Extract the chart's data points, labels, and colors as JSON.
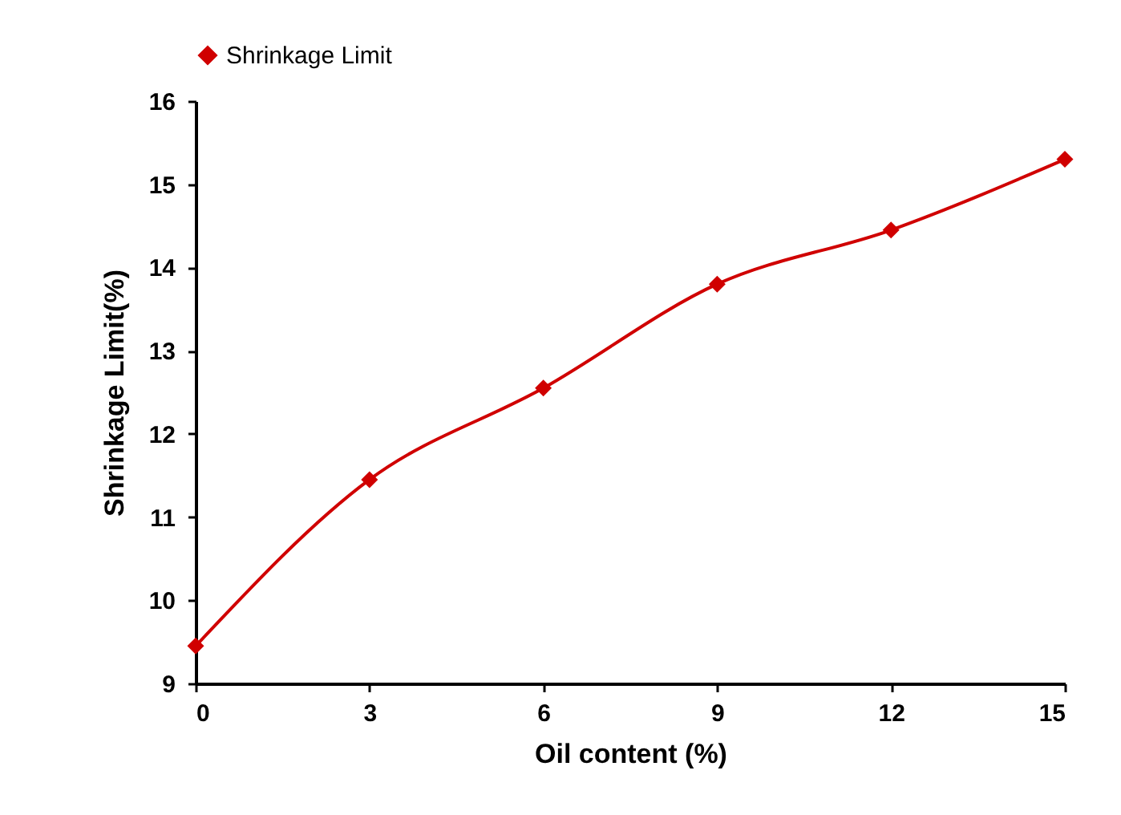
{
  "chart_data": {
    "type": "line",
    "xlabel": "Oil content (%)",
    "ylabel": "Shrinkage Limit(%)",
    "x": [
      0,
      3,
      6,
      9,
      12,
      15
    ],
    "series": [
      {
        "name": "Shrinkage Limit",
        "color": "#d00000",
        "values": [
          9.45,
          11.45,
          12.55,
          13.8,
          14.45,
          15.3
        ]
      }
    ],
    "xlim": [
      0,
      15
    ],
    "xticks": [
      0,
      3,
      6,
      9,
      12,
      15
    ],
    "ylim": [
      9,
      16
    ],
    "yticks": [
      9,
      10,
      11,
      12,
      13,
      14,
      15,
      16
    ],
    "legend": "top",
    "marker": "diamond",
    "line_style": "solid",
    "grid": false
  }
}
